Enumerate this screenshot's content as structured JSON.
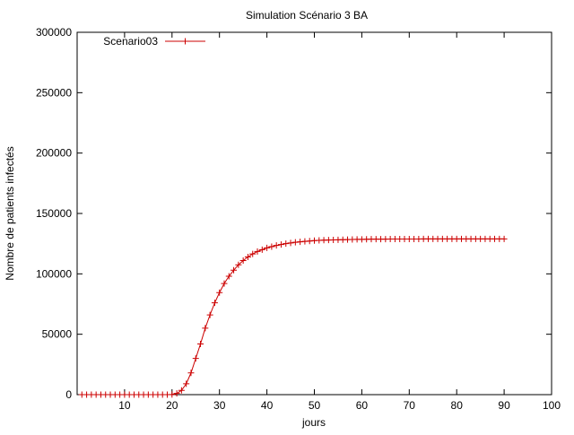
{
  "chart_data": {
    "type": "line",
    "title": "Simulation Scénario 3 BA",
    "xlabel": "jours",
    "ylabel": "Nombre de patients infectés",
    "xlim": [
      0,
      100
    ],
    "ylim": [
      0,
      300000
    ],
    "xticks": [
      10,
      20,
      30,
      40,
      50,
      60,
      70,
      80,
      90,
      100
    ],
    "yticks": [
      0,
      50000,
      100000,
      150000,
      200000,
      250000,
      300000
    ],
    "grid": false,
    "legend_position": "top-left",
    "series": [
      {
        "name": "Scenario03",
        "color": "#cc0000",
        "marker": "plus",
        "x": [
          1,
          2,
          3,
          4,
          5,
          6,
          7,
          8,
          9,
          10,
          11,
          12,
          13,
          14,
          15,
          16,
          17,
          18,
          19,
          20,
          21,
          22,
          23,
          24,
          25,
          26,
          27,
          28,
          29,
          30,
          31,
          32,
          33,
          34,
          35,
          36,
          37,
          38,
          39,
          40,
          41,
          42,
          43,
          44,
          45,
          46,
          47,
          48,
          49,
          50,
          51,
          52,
          53,
          54,
          55,
          56,
          57,
          58,
          59,
          60,
          61,
          62,
          63,
          64,
          65,
          66,
          67,
          68,
          69,
          70,
          71,
          72,
          73,
          74,
          75,
          76,
          77,
          78,
          79,
          80,
          81,
          82,
          83,
          84,
          85,
          86,
          87,
          88,
          89,
          90
        ],
        "y": [
          0,
          0,
          0,
          0,
          0,
          0,
          0,
          0,
          0,
          0,
          0,
          0,
          0,
          0,
          0,
          0,
          0,
          0,
          0,
          100,
          1000,
          3500,
          9000,
          18000,
          30000,
          42000,
          55000,
          66000,
          76000,
          84500,
          92000,
          98000,
          103000,
          107500,
          111000,
          114000,
          116500,
          118500,
          120000,
          121500,
          122500,
          123500,
          124300,
          125000,
          125600,
          126100,
          126500,
          126900,
          127200,
          127500,
          127700,
          127900,
          128000,
          128100,
          128200,
          128300,
          128400,
          128500,
          128550,
          128600,
          128650,
          128700,
          128700,
          128750,
          128750,
          128800,
          128800,
          128800,
          128850,
          128850,
          128850,
          128850,
          128900,
          128900,
          128900,
          128900,
          128900,
          128900,
          128900,
          128900,
          128900,
          128900,
          128900,
          128900,
          128900,
          128900,
          128900,
          128900,
          128900,
          128900
        ]
      }
    ]
  }
}
